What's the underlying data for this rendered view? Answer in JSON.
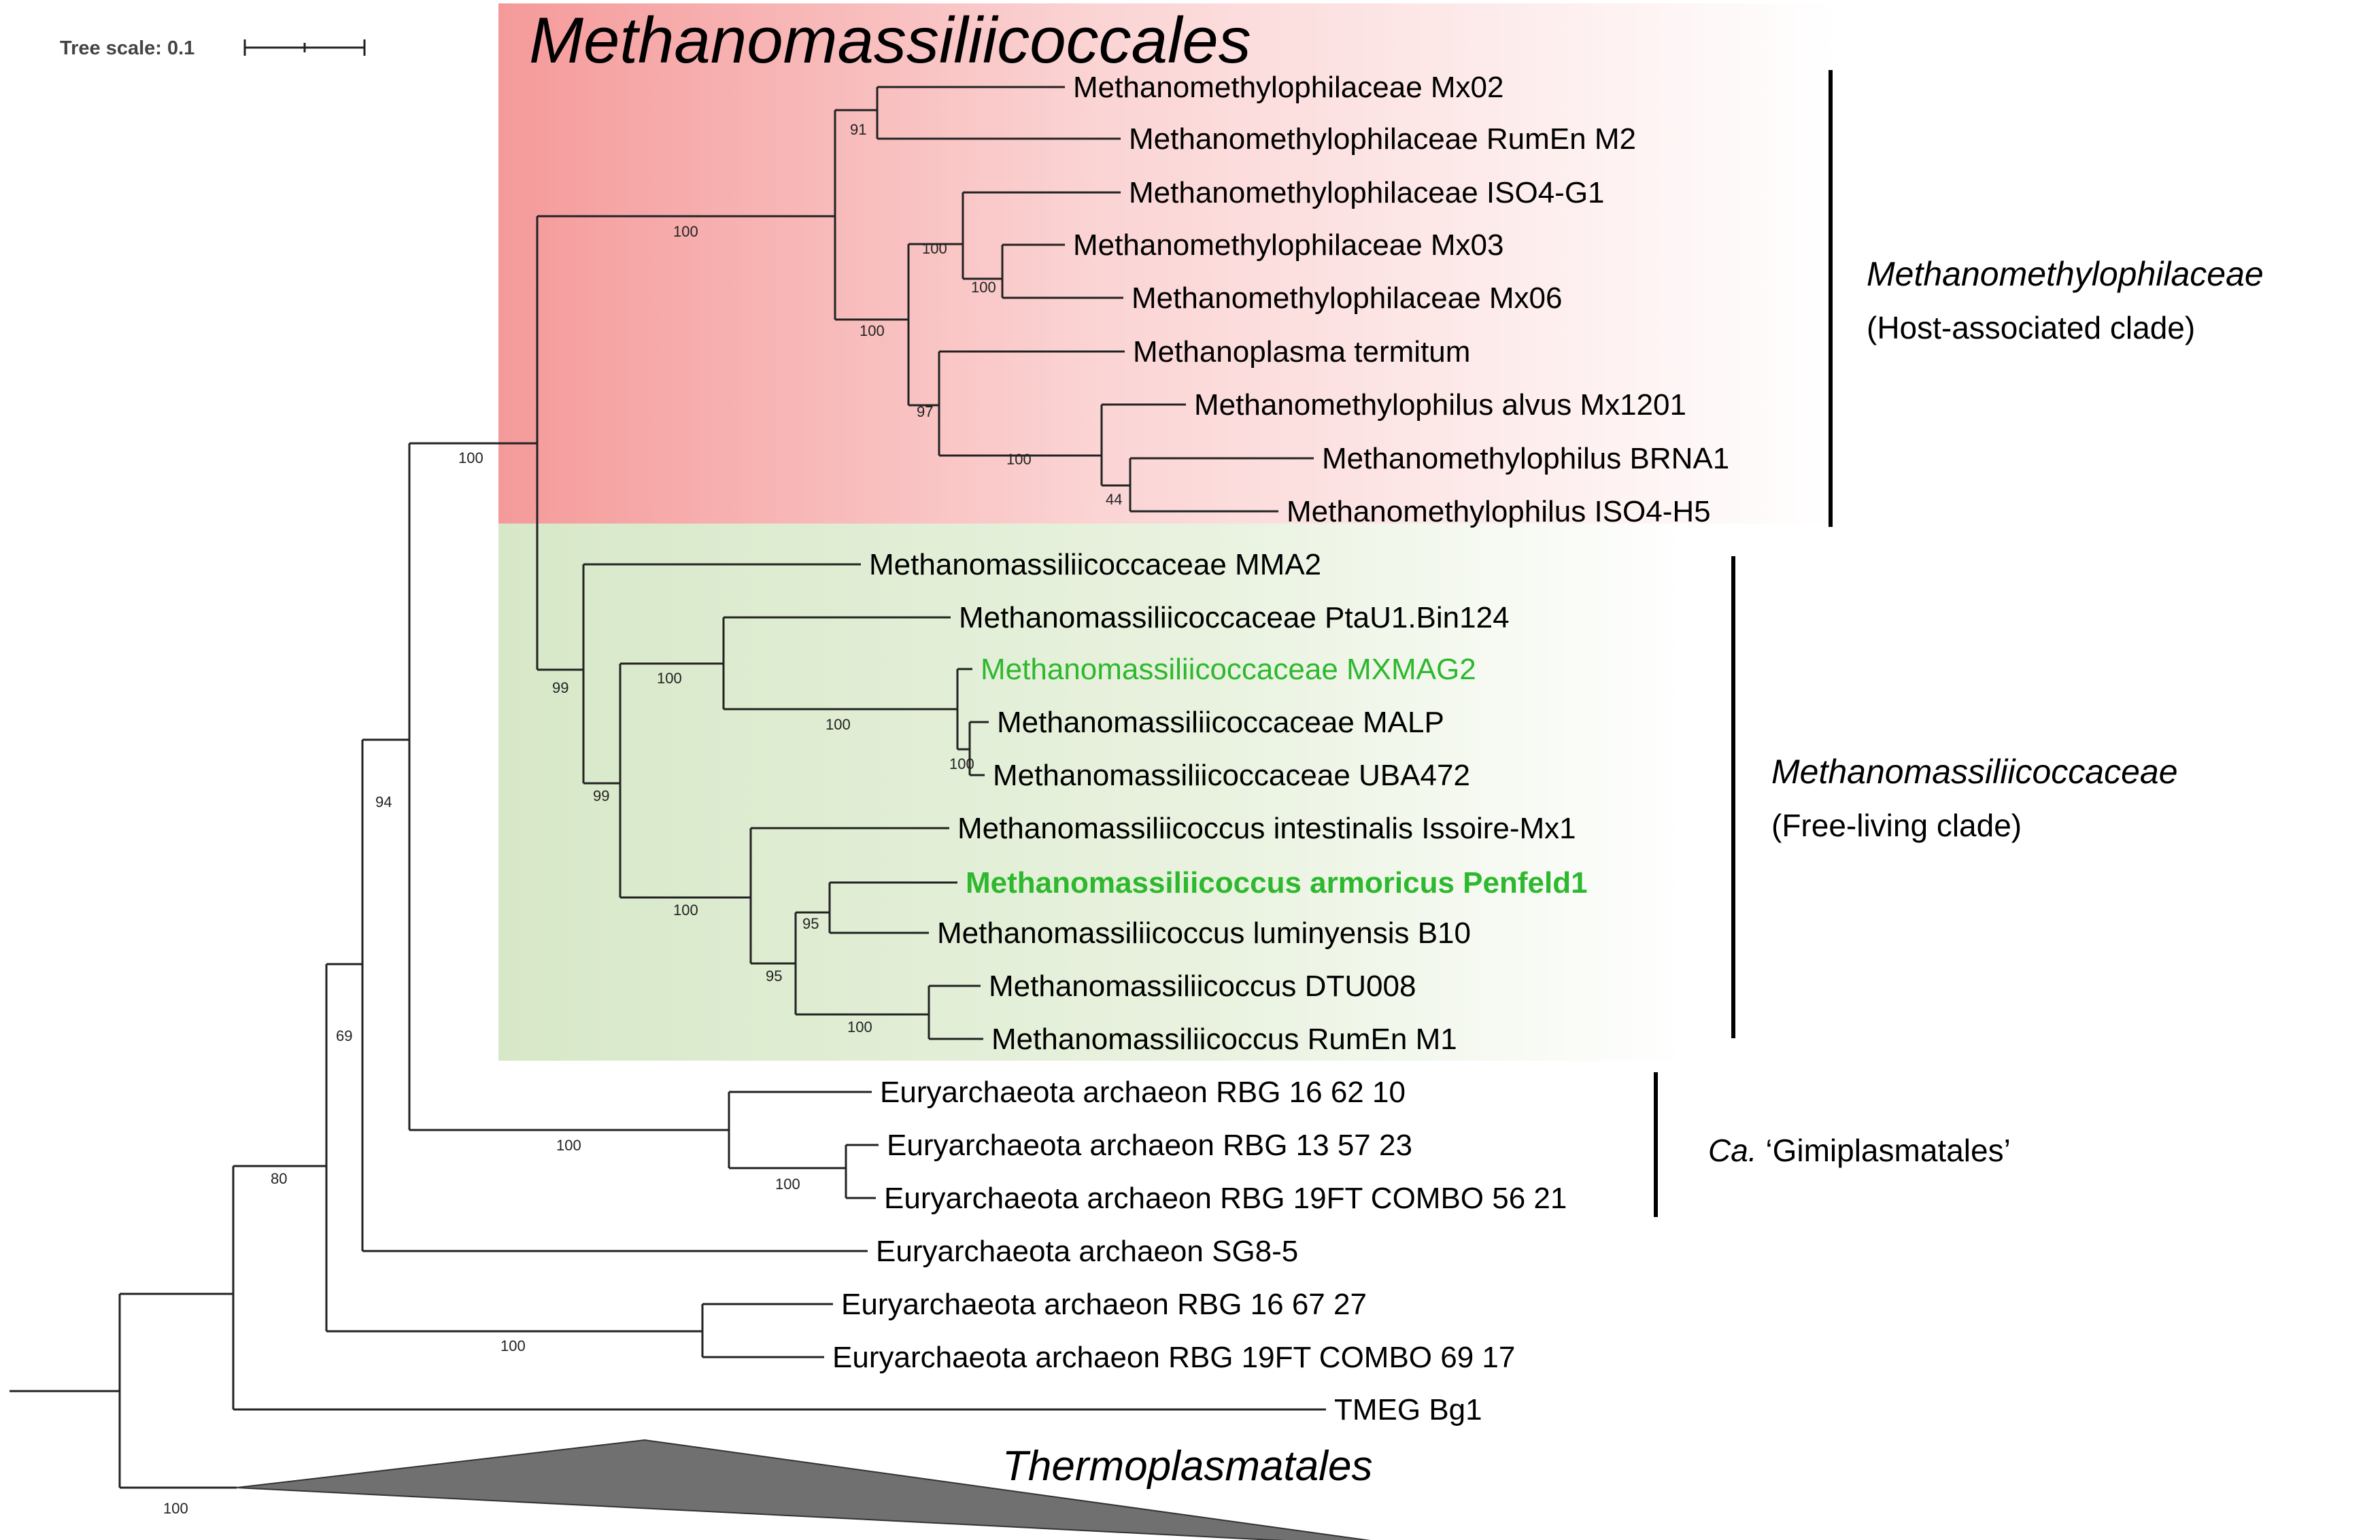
{
  "title": "Methanomassiliicoccales",
  "tree_scale": {
    "label": "Tree scale: 0.1"
  },
  "tips": [
    {
      "id": "mx02",
      "label": "Methanomethylophilaceae Mx02",
      "style": "normal"
    },
    {
      "id": "rumen_m2",
      "label": "Methanomethylophilaceae RumEn M2",
      "style": "normal"
    },
    {
      "id": "iso4g1",
      "label": "Methanomethylophilaceae ISO4-G1",
      "style": "normal"
    },
    {
      "id": "mx03",
      "label": "Methanomethylophilaceae Mx03",
      "style": "normal"
    },
    {
      "id": "mx06",
      "label": "Methanomethylophilaceae Mx06",
      "style": "normal"
    },
    {
      "id": "termitum",
      "label": "Methanoplasma termitum",
      "style": "normal"
    },
    {
      "id": "alvus",
      "label": "Methanomethylophilus alvus Mx1201",
      "style": "normal"
    },
    {
      "id": "brna1",
      "label": "Methanomethylophilus BRNA1",
      "style": "normal"
    },
    {
      "id": "iso4h5",
      "label": "Methanomethylophilus ISO4-H5",
      "style": "normal"
    },
    {
      "id": "mma2",
      "label": "Methanomassiliicoccaceae MMA2",
      "style": "normal"
    },
    {
      "id": "ptau1",
      "label": "Methanomassiliicoccaceae PtaU1.Bin124",
      "style": "normal"
    },
    {
      "id": "mxmag2",
      "label": "Methanomassiliicoccaceae MXMAG2",
      "style": "green"
    },
    {
      "id": "malp",
      "label": "Methanomassiliicoccaceae MALP",
      "style": "normal"
    },
    {
      "id": "uba472",
      "label": "Methanomassiliicoccaceae UBA472",
      "style": "normal"
    },
    {
      "id": "intestinalis",
      "label": "Methanomassiliicoccus intestinalis Issoire-Mx1",
      "style": "normal"
    },
    {
      "id": "armoricus",
      "label": "Methanomassiliicoccus armoricus Penfeld1",
      "style": "green-bold"
    },
    {
      "id": "luminyensis",
      "label": "Methanomassiliicoccus luminyensis B10",
      "style": "normal"
    },
    {
      "id": "dtu008",
      "label": "Methanomassiliicoccus DTU008",
      "style": "normal"
    },
    {
      "id": "rumen_m1",
      "label": "Methanomassiliicoccus RumEn M1",
      "style": "normal"
    },
    {
      "id": "rbg16_62_10",
      "label": "Euryarchaeota archaeon RBG 16 62 10",
      "style": "normal"
    },
    {
      "id": "rbg13_57_23",
      "label": "Euryarchaeota archaeon RBG 13 57 23",
      "style": "normal"
    },
    {
      "id": "rbg19_56_21",
      "label": "Euryarchaeota archaeon RBG 19FT COMBO 56 21",
      "style": "normal"
    },
    {
      "id": "sg85",
      "label": "Euryarchaeota archaeon SG8-5",
      "style": "normal"
    },
    {
      "id": "rbg16_67_27",
      "label": "Euryarchaeota archaeon RBG 16 67 27",
      "style": "normal"
    },
    {
      "id": "rbg19_69_17",
      "label": "Euryarchaeota archaeon RBG 19FT COMBO 69 17",
      "style": "normal"
    },
    {
      "id": "tmeg",
      "label": "TMEG Bg1",
      "style": "normal"
    }
  ],
  "bootstrap": {
    "n91": "91",
    "n100_mmp": "100",
    "n100_iso": "100",
    "n100_mx": "100",
    "n100_a": "100",
    "n97": "97",
    "n100_b": "100",
    "n44": "44",
    "n100_c": "100",
    "n99_top": "99",
    "n100_d": "100",
    "n100_e": "100",
    "n100_f": "100",
    "n99_b": "99",
    "n100_g": "100",
    "n95_a": "95",
    "n95_b": "95",
    "n100_h": "100",
    "n94": "94",
    "n100_gimi": "100",
    "n100_gimi2": "100",
    "n69": "69",
    "n80": "80",
    "n100_rbg": "100",
    "n100_root": "100"
  },
  "clades": {
    "host": {
      "name": "Methanomethylophilaceae",
      "desc": "(Host-associated clade)",
      "color": "#f59a9a"
    },
    "free": {
      "name": "Methanomassiliicoccaceae",
      "desc": "(Free-living clade)",
      "color": "#d7e8c8"
    },
    "gimi": {
      "prefix": "Ca.",
      "name": "‘Gimiplasmatales’"
    },
    "collapsed": {
      "name": "Thermoplasmatales",
      "color": "#707070"
    }
  }
}
